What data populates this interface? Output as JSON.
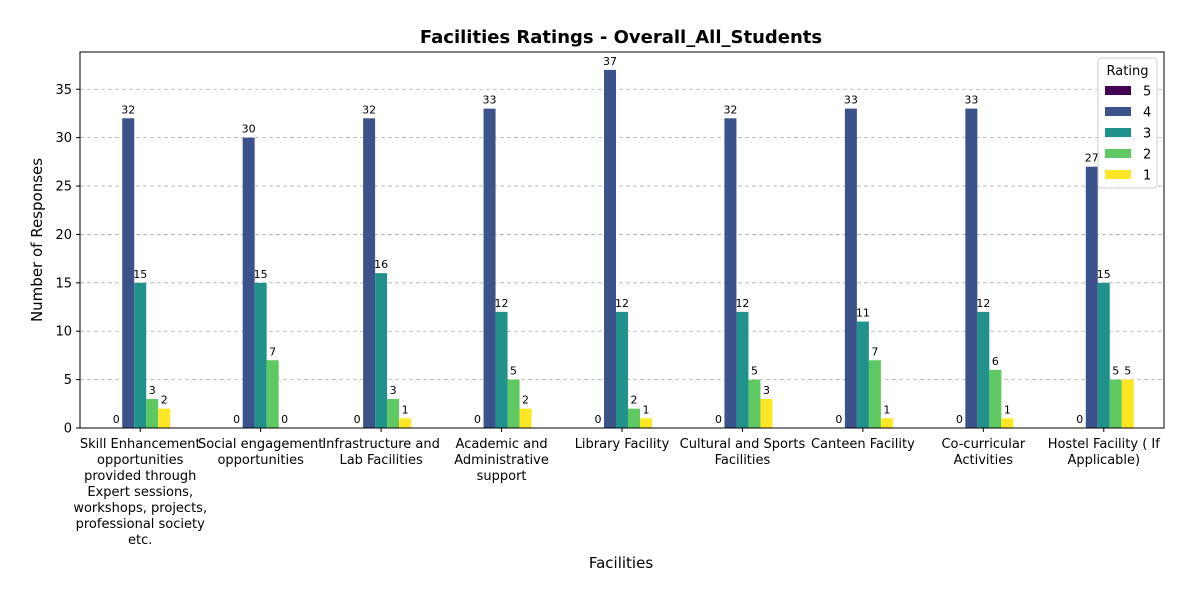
{
  "chart_data": {
    "type": "bar",
    "title": "Facilities Ratings - Overall_All_Students",
    "xlabel": "Facilities",
    "ylabel": "Number of Responses",
    "ylim": [
      0,
      38.85
    ],
    "yticks": [
      0,
      5,
      10,
      15,
      20,
      25,
      30,
      35
    ],
    "grid": "y-dashed",
    "legend": {
      "title": "Rating",
      "placement": "top-right"
    },
    "categories": [
      "Skill Enhancement opportunities provided through Expert sessions, workshops, projects, professional society etc.",
      "Social engagement opportunities",
      "Infrastructure and Lab Facilities",
      "Academic and Administrative support",
      "Library Facility",
      "Cultural and Sports Facilities",
      "Canteen Facility",
      "Co-curricular Activities",
      "Hostel Facility ( If Applicable)"
    ],
    "category_lines": [
      [
        "Skill Enhancement",
        "opportunities",
        "provided through",
        "Expert sessions,",
        "workshops, projects,",
        "professional society",
        "etc."
      ],
      [
        "Social engagement",
        "opportunities"
      ],
      [
        "Infrastructure and",
        "Lab Facilities"
      ],
      [
        "Academic and",
        "Administrative",
        "support"
      ],
      [
        "Library Facility"
      ],
      [
        "Cultural and Sports",
        "Facilities"
      ],
      [
        "Canteen Facility"
      ],
      [
        "Co-curricular",
        "Activities"
      ],
      [
        "Hostel Facility ( If",
        "Applicable)"
      ]
    ],
    "series": [
      {
        "name": "5",
        "color": "#440154",
        "values": [
          0,
          0,
          0,
          0,
          0,
          0,
          0,
          0,
          0
        ]
      },
      {
        "name": "4",
        "color": "#3b528b",
        "values": [
          32,
          30,
          32,
          33,
          37,
          32,
          33,
          33,
          27
        ]
      },
      {
        "name": "3",
        "color": "#21918c",
        "values": [
          15,
          15,
          16,
          12,
          12,
          12,
          11,
          12,
          15
        ]
      },
      {
        "name": "2",
        "color": "#5ec962",
        "values": [
          3,
          7,
          3,
          5,
          2,
          5,
          7,
          6,
          5
        ]
      },
      {
        "name": "1",
        "color": "#fde725",
        "values": [
          2,
          0,
          1,
          2,
          1,
          3,
          1,
          1,
          5
        ]
      }
    ]
  }
}
